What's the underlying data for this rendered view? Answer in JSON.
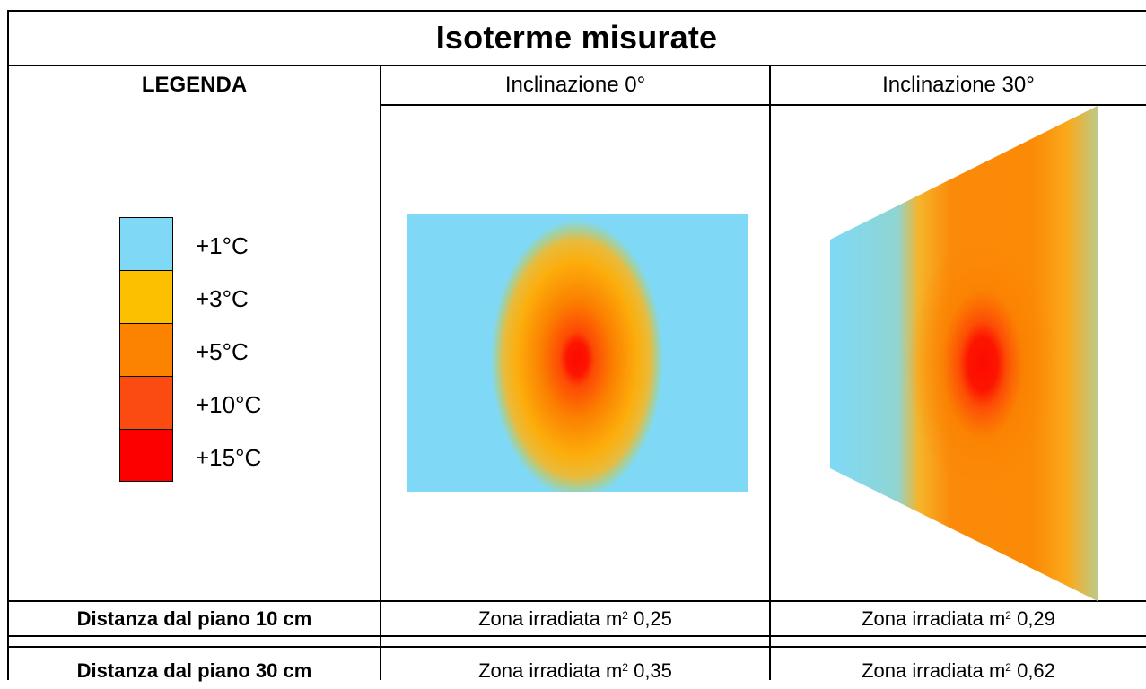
{
  "title": "Isoterme misurate",
  "headers": {
    "legend": "LEGENDA",
    "col1": "Inclinazione 0°",
    "col2": "Inclinazione 30°"
  },
  "legend": {
    "items": [
      {
        "label": "+1°C",
        "color": "#7fd9f6"
      },
      {
        "label": "+3°C",
        "color": "#fcc000"
      },
      {
        "label": "+5°C",
        "color": "#fb8300"
      },
      {
        "label": "+10°C",
        "color": "#fc4b10"
      },
      {
        "label": "+15°C",
        "color": "#fc0000"
      }
    ]
  },
  "rows": [
    {
      "distance": "Distanza dal piano 10 cm",
      "zona_prefix": "Zona irradiata m",
      "exp": "2",
      "value_col1": " 0,25",
      "value_col2": " 0,29"
    },
    {
      "distance": "Distanza dal piano 30 cm",
      "zona_prefix": "Zona irradiata m",
      "exp": "2",
      "value_col1": " 0,35",
      "value_col2": " 0,62"
    }
  ]
}
